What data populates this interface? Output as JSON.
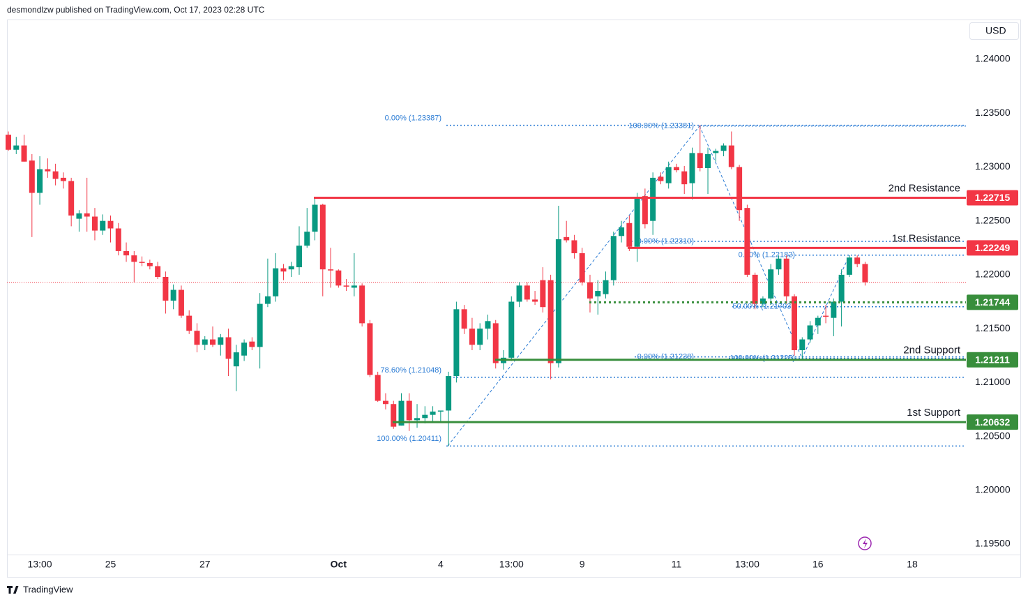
{
  "header": "desmondlzw published on TradingView.com, Oct 17, 2023 02:28 UTC",
  "footer": "TradingView",
  "chart_data": {
    "type": "candlestick",
    "y_axis_label": "USD",
    "up_color": "#089981",
    "down_color": "#f23645",
    "ylim": [
      1.19403,
      1.24369
    ],
    "yticks": [
      {
        "value": 1.195,
        "label": "1.19500"
      },
      {
        "value": 1.2,
        "label": "1.20000"
      },
      {
        "value": 1.205,
        "label": "1.20500"
      },
      {
        "value": 1.21,
        "label": "1.21000"
      },
      {
        "value": 1.215,
        "label": "1.21500"
      },
      {
        "value": 1.22,
        "label": "1.22000"
      },
      {
        "value": 1.225,
        "label": "1.22500"
      },
      {
        "value": 1.23,
        "label": "1.23000"
      },
      {
        "value": 1.235,
        "label": "1.23500"
      },
      {
        "value": 1.24,
        "label": "1.24000"
      }
    ],
    "grid": false,
    "categories": [
      null,
      null,
      null,
      null,
      "13:00",
      null,
      null,
      null,
      null,
      null,
      null,
      null,
      null,
      "25",
      null,
      null,
      null,
      null,
      null,
      null,
      null,
      null,
      null,
      null,
      null,
      "27",
      null,
      null,
      null,
      null,
      null,
      null,
      null,
      null,
      null,
      null,
      null,
      null,
      null,
      null,
      null,
      null,
      "Oct",
      null,
      null,
      null,
      null,
      null,
      null,
      null,
      null,
      null,
      null,
      null,
      null,
      "4",
      null,
      null,
      null,
      null,
      null,
      null,
      null,
      null,
      "13:00",
      null,
      null,
      null,
      null,
      null,
      null,
      null,
      null,
      "9",
      null,
      null,
      null,
      null,
      null,
      null,
      null,
      null,
      null,
      null,
      null,
      "11",
      null,
      null,
      null,
      null,
      null,
      null,
      null,
      null,
      "13:00",
      null,
      null,
      null,
      null,
      null,
      null,
      null,
      null,
      "16",
      null,
      null,
      null,
      null,
      null,
      null,
      null,
      null,
      null,
      null,
      null,
      "18"
    ],
    "open": [
      1.233,
      1.2316,
      1.232,
      1.2306,
      1.2276,
      1.2298,
      1.2296,
      1.229,
      1.2287,
      1.2252,
      1.2257,
      1.2254,
      1.2241,
      1.225,
      1.2243,
      1.2222,
      1.2218,
      1.2212,
      1.2211,
      1.2208,
      1.2198,
      1.2176,
      1.2186,
      1.2162,
      1.2148,
      1.2135,
      1.214,
      1.2135,
      1.2142,
      1.2115,
      1.2125,
      1.2138,
      1.2133,
      1.2173,
      1.218,
      1.2206,
      1.2205,
      1.2207,
      1.2227,
      1.224,
      1.2265,
      1.2205,
      1.2204,
      1.219,
      1.2188,
      1.219,
      1.2155,
      1.2107,
      1.2083,
      1.208,
      1.206,
      1.2083,
      1.2065,
      1.2067,
      1.207,
      1.2073,
      1.2074,
      1.2106,
      1.2168,
      1.215,
      1.2135,
      1.215,
      1.2155,
      1.2118,
      1.2123,
      1.2175,
      1.219,
      1.2177,
      1.2195,
      1.2195,
      1.2118,
      1.2235,
      1.2232,
      1.222,
      1.2193,
      1.218,
      1.2182,
      1.2195,
      1.2236,
      1.2248,
      1.2226,
      1.2273,
      1.225,
      1.2291,
      1.2285,
      1.23,
      1.2296,
      1.2285,
      1.2313,
      1.2299,
      1.2313,
      1.2315,
      1.232,
      1.23,
      1.2262,
      1.22,
      1.2173,
      1.2178,
      1.2205,
      1.2215,
      1.218,
      1.213,
      1.214,
      1.2153,
      1.2162,
      1.216,
      1.2175,
      1.22,
      1.2216,
      1.221,
      null,
      null,
      null,
      null,
      null,
      null
    ],
    "high": [
      1.2333,
      1.2328,
      1.233,
      1.2312,
      1.231,
      1.2308,
      1.2303,
      1.2295,
      1.229,
      1.226,
      1.229,
      1.2262,
      1.2256,
      1.2255,
      1.2248,
      1.223,
      1.2222,
      1.2217,
      1.2214,
      1.2212,
      1.2203,
      1.2191,
      1.219,
      1.2167,
      1.2155,
      1.2143,
      1.2152,
      1.2145,
      1.215,
      1.2135,
      1.214,
      1.2142,
      1.2183,
      1.2215,
      1.222,
      1.221,
      1.2212,
      1.2245,
      1.2262,
      1.2271,
      1.2266,
      1.2225,
      1.2205,
      1.2196,
      1.222,
      1.2192,
      1.2158,
      1.211,
      1.209,
      1.2083,
      1.209,
      1.209,
      1.208,
      1.2078,
      1.2078,
      1.2074,
      1.211,
      1.2175,
      1.2172,
      1.216,
      1.2155,
      1.2163,
      1.2158,
      1.213,
      1.218,
      1.2193,
      1.2193,
      1.2185,
      1.2207,
      1.22,
      1.2264,
      1.225,
      1.2237,
      1.2225,
      1.22,
      1.2195,
      1.2203,
      1.224,
      1.225,
      1.2255,
      1.2276,
      1.228,
      1.2295,
      1.2295,
      1.2305,
      1.2303,
      1.2301,
      1.2318,
      1.2339,
      1.2318,
      1.2317,
      1.2322,
      1.2333,
      1.2302,
      1.2265,
      1.2202,
      1.218,
      1.221,
      1.2218,
      1.2218,
      1.2182,
      1.2142,
      1.2157,
      1.2162,
      1.2172,
      1.2178,
      1.2205,
      1.2218,
      1.2218,
      1.2212,
      null,
      null,
      null,
      null,
      null,
      null
    ],
    "low": [
      1.2315,
      1.2312,
      1.2305,
      1.2235,
      1.2265,
      1.229,
      1.2283,
      1.228,
      1.2245,
      1.224,
      1.224,
      1.2232,
      1.2237,
      1.223,
      1.2218,
      1.2212,
      1.2193,
      1.2208,
      1.2205,
      1.2196,
      1.2164,
      1.2168,
      1.216,
      1.2145,
      1.2128,
      1.213,
      1.2133,
      1.2125,
      1.2106,
      1.2092,
      1.212,
      1.213,
      1.2113,
      1.217,
      1.2175,
      1.2195,
      1.2198,
      1.22,
      1.2225,
      1.2232,
      1.218,
      1.2188,
      1.2188,
      1.2185,
      1.218,
      1.2152,
      1.2105,
      1.2082,
      1.2075,
      1.2057,
      1.206,
      1.2055,
      1.2058,
      1.2062,
      1.2064,
      1.2063,
      1.2041,
      1.21,
      1.2145,
      1.213,
      1.213,
      1.214,
      1.2113,
      1.2112,
      1.212,
      1.217,
      1.2175,
      1.2172,
      1.2165,
      1.2103,
      1.2114,
      1.223,
      1.2215,
      1.219,
      1.2165,
      1.2163,
      1.2178,
      1.219,
      1.223,
      1.2222,
      1.2212,
      1.2243,
      1.2237,
      1.2284,
      1.228,
      1.2295,
      1.2275,
      1.227,
      1.2296,
      1.2275,
      1.2305,
      1.231,
      1.2298,
      1.225,
      1.2198,
      1.2168,
      1.217,
      1.2172,
      1.22,
      1.2173,
      1.2125,
      1.2122,
      1.2137,
      1.2145,
      1.2155,
      1.2143,
      1.2152,
      1.2198,
      1.2207,
      1.219,
      null,
      null,
      null,
      null,
      null,
      null
    ],
    "close": [
      1.2316,
      1.232,
      1.2305,
      1.2276,
      1.2298,
      1.2296,
      1.2289,
      1.2287,
      1.2255,
      1.2257,
      1.2254,
      1.2241,
      1.225,
      1.2243,
      1.2222,
      1.2218,
      1.2212,
      1.2211,
      1.2208,
      1.2198,
      1.2176,
      1.2186,
      1.2162,
      1.2148,
      1.2135,
      1.214,
      1.2135,
      1.2142,
      1.2122,
      1.2128,
      1.2137,
      1.2133,
      1.2173,
      1.218,
      1.2206,
      1.2203,
      1.2208,
      1.2227,
      1.224,
      1.2265,
      1.2205,
      1.2204,
      1.219,
      1.2189,
      1.219,
      1.2155,
      1.2107,
      1.2083,
      1.208,
      1.2059,
      1.2083,
      1.2065,
      1.2067,
      1.207,
      1.2073,
      1.2074,
      1.2106,
      1.2168,
      1.215,
      1.2135,
      1.215,
      1.2157,
      1.2118,
      1.2123,
      1.2175,
      1.219,
      1.2177,
      1.2175,
      1.217,
      1.2118,
      1.2233,
      1.2232,
      1.222,
      1.2193,
      1.2178,
      1.2185,
      1.2195,
      1.2236,
      1.2244,
      1.2226,
      1.2272,
      1.2247,
      1.229,
      1.2287,
      1.23,
      1.2297,
      1.2284,
      1.2313,
      1.2299,
      1.2312,
      1.2315,
      1.232,
      1.23,
      1.226,
      1.22,
      1.2173,
      1.2178,
      1.2205,
      1.2215,
      1.218,
      1.213,
      1.214,
      1.2153,
      1.216,
      1.2161,
      1.2175,
      1.22,
      1.2216,
      1.221,
      1.2193,
      null,
      null,
      null,
      null,
      null,
      null
    ],
    "levels": [
      {
        "name": "2nd Resistance",
        "value": 1.22715,
        "color": "#f23645"
      },
      {
        "name": "1st Resistance",
        "value": 1.22249,
        "color": "#f23645"
      },
      {
        "value": 1.21744,
        "color": "#388e3c"
      },
      {
        "name": "2nd Support",
        "value": 1.21211,
        "color": "#388e3c"
      },
      {
        "name": "1st Support",
        "value": 1.20632,
        "color": "#388e3c"
      }
    ],
    "fib_levels": [
      {
        "label": "0.00% (1.23387)",
        "value": 1.23387
      },
      {
        "label": "100.00% (1.23381)",
        "value": 1.23381
      },
      {
        "label": "0.00% (1.22310)",
        "value": 1.2231
      },
      {
        "label": "0.00% (1.22182)",
        "value": 1.22182
      },
      {
        "label": "50.00% (1.21703)",
        "value": 1.21703
      },
      {
        "label": "0.00% (1.21238)",
        "value": 1.21238
      },
      {
        "label": "100.00% (1.21225)",
        "value": 1.21225
      },
      {
        "label": "78.60% (1.21048)",
        "value": 1.21048
      },
      {
        "label": "100.00% (1.20411)",
        "value": 1.20411
      }
    ],
    "fib_color": "#2a7bd4"
  }
}
